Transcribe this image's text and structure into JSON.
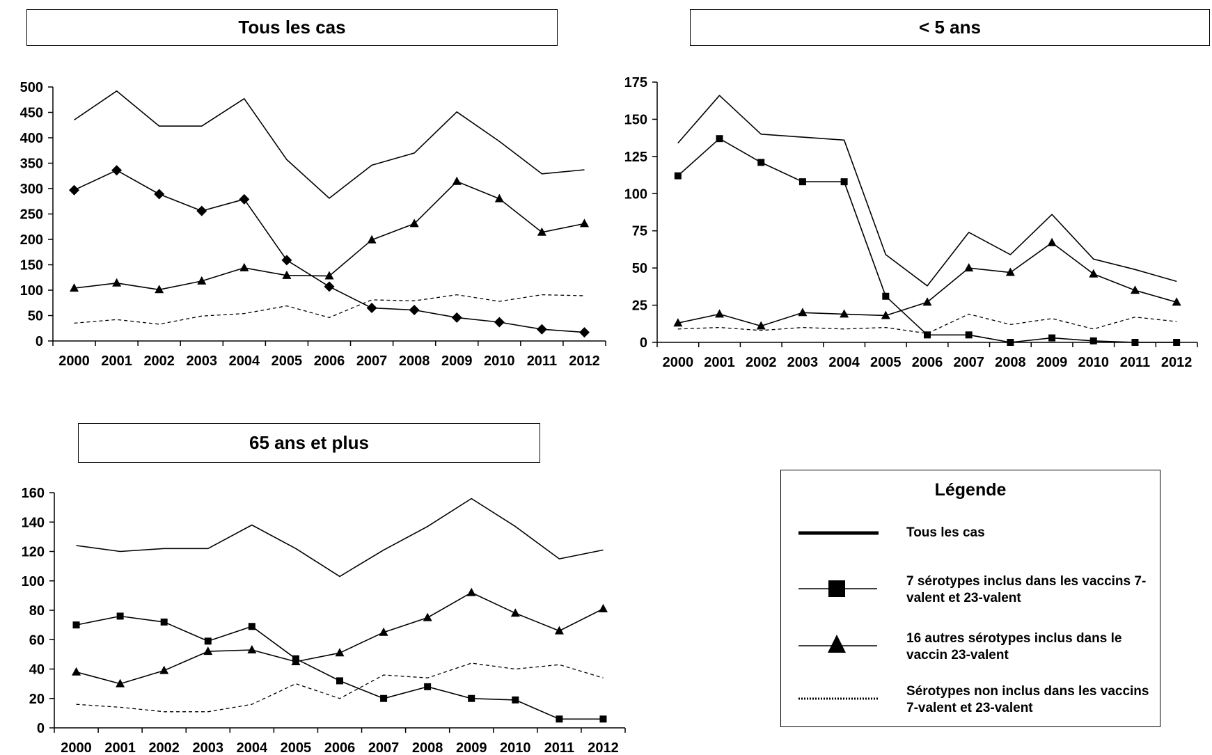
{
  "chart_data": [
    {
      "type": "line",
      "title": "Tous les cas",
      "categories": [
        "2000",
        "2001",
        "2002",
        "2003",
        "2004",
        "2005",
        "2006",
        "2007",
        "2008",
        "2009",
        "2010",
        "2011",
        "2012"
      ],
      "ylim": [
        0,
        500
      ],
      "yticks": [
        0,
        50,
        100,
        150,
        200,
        250,
        300,
        350,
        400,
        450,
        500
      ],
      "series": [
        {
          "name": "Tous les cas",
          "style": "solid",
          "marker": "none",
          "values": [
            435,
            492,
            423,
            423,
            477,
            357,
            281,
            346,
            370,
            451,
            393,
            329,
            337
          ]
        },
        {
          "name": "7 sérotypes inclus dans les vaccins 7-valent et 23-valent",
          "style": "solid",
          "marker": "diamond",
          "values": [
            297,
            336,
            289,
            256,
            279,
            159,
            107,
            65,
            61,
            46,
            37,
            23,
            17
          ]
        },
        {
          "name": "16 autres sérotypes inclus dans le vaccin 23-valent",
          "style": "solid",
          "marker": "triangle",
          "values": [
            104,
            114,
            101,
            118,
            144,
            129,
            128,
            199,
            231,
            314,
            280,
            214,
            231
          ]
        },
        {
          "name": "Sérotypes non inclus dans les vaccins 7-valent et 23-valent",
          "style": "dashed",
          "marker": "none",
          "values": [
            35,
            42,
            33,
            49,
            54,
            69,
            46,
            81,
            79,
            91,
            78,
            91,
            89
          ]
        }
      ]
    },
    {
      "type": "line",
      "title": "< 5 ans",
      "categories": [
        "2000",
        "2001",
        "2002",
        "2003",
        "2004",
        "2005",
        "2006",
        "2007",
        "2008",
        "2009",
        "2010",
        "2011",
        "2012"
      ],
      "ylim": [
        0,
        175
      ],
      "yticks": [
        0,
        25,
        50,
        75,
        100,
        125,
        150,
        175
      ],
      "series": [
        {
          "name": "Tous les cas",
          "style": "solid",
          "marker": "none",
          "values": [
            134,
            166,
            140,
            138,
            136,
            59,
            38,
            74,
            59,
            86,
            56,
            49,
            41
          ]
        },
        {
          "name": "7 sérotypes inclus dans les vaccins 7-valent et 23-valent",
          "style": "solid",
          "marker": "square",
          "values": [
            112,
            137,
            121,
            108,
            108,
            31,
            5,
            5,
            0,
            3,
            1,
            0,
            0
          ]
        },
        {
          "name": "16 autres sérotypes inclus dans le vaccin 23-valent",
          "style": "solid",
          "marker": "triangle",
          "values": [
            13,
            19,
            11,
            20,
            19,
            18,
            27,
            50,
            47,
            67,
            46,
            35,
            27
          ]
        },
        {
          "name": "Sérotypes non inclus dans les vaccins 7-valent et 23-valent",
          "style": "dashed",
          "marker": "none",
          "values": [
            9,
            10,
            8,
            10,
            9,
            10,
            6,
            19,
            12,
            16,
            9,
            17,
            14
          ]
        }
      ]
    },
    {
      "type": "line",
      "title": "65 ans et plus",
      "categories": [
        "2000",
        "2001",
        "2002",
        "2003",
        "2004",
        "2005",
        "2006",
        "2007",
        "2008",
        "2009",
        "2010",
        "2011",
        "2012"
      ],
      "ylim": [
        0,
        160
      ],
      "yticks": [
        0,
        20,
        40,
        60,
        80,
        100,
        120,
        140,
        160
      ],
      "series": [
        {
          "name": "Tous les cas",
          "style": "solid",
          "marker": "none",
          "values": [
            124,
            120,
            122,
            122,
            138,
            122,
            103,
            121,
            137,
            156,
            137,
            115,
            121
          ]
        },
        {
          "name": "7 sérotypes inclus dans les vaccins 7-valent et 23-valent",
          "style": "solid",
          "marker": "square",
          "values": [
            70,
            76,
            72,
            59,
            69,
            47,
            32,
            20,
            28,
            20,
            19,
            6,
            6
          ]
        },
        {
          "name": "16 autres sérotypes inclus dans le vaccin 23-valent",
          "style": "solid",
          "marker": "triangle",
          "values": [
            38,
            30,
            39,
            52,
            53,
            45,
            51,
            65,
            75,
            92,
            78,
            66,
            81
          ]
        },
        {
          "name": "Sérotypes non inclus dans les vaccins 7-valent et 23-valent",
          "style": "dashed",
          "marker": "none",
          "values": [
            16,
            14,
            11,
            11,
            16,
            30,
            20,
            36,
            34,
            44,
            40,
            43,
            34
          ]
        }
      ]
    }
  ],
  "legend": {
    "title": "Légende",
    "items": [
      {
        "label": "Tous les cas",
        "icon": "thick-line-icon"
      },
      {
        "label": "7 sérotypes inclus dans les vaccins 7-valent et 23-valent",
        "icon": "square-marker-icon"
      },
      {
        "label": "16 autres sérotypes inclus dans le vaccin 23-valent",
        "icon": "triangle-marker-icon"
      },
      {
        "label": "Sérotypes non inclus dans les vaccins 7-valent et 23-valent",
        "icon": "dotted-line-icon"
      }
    ]
  }
}
